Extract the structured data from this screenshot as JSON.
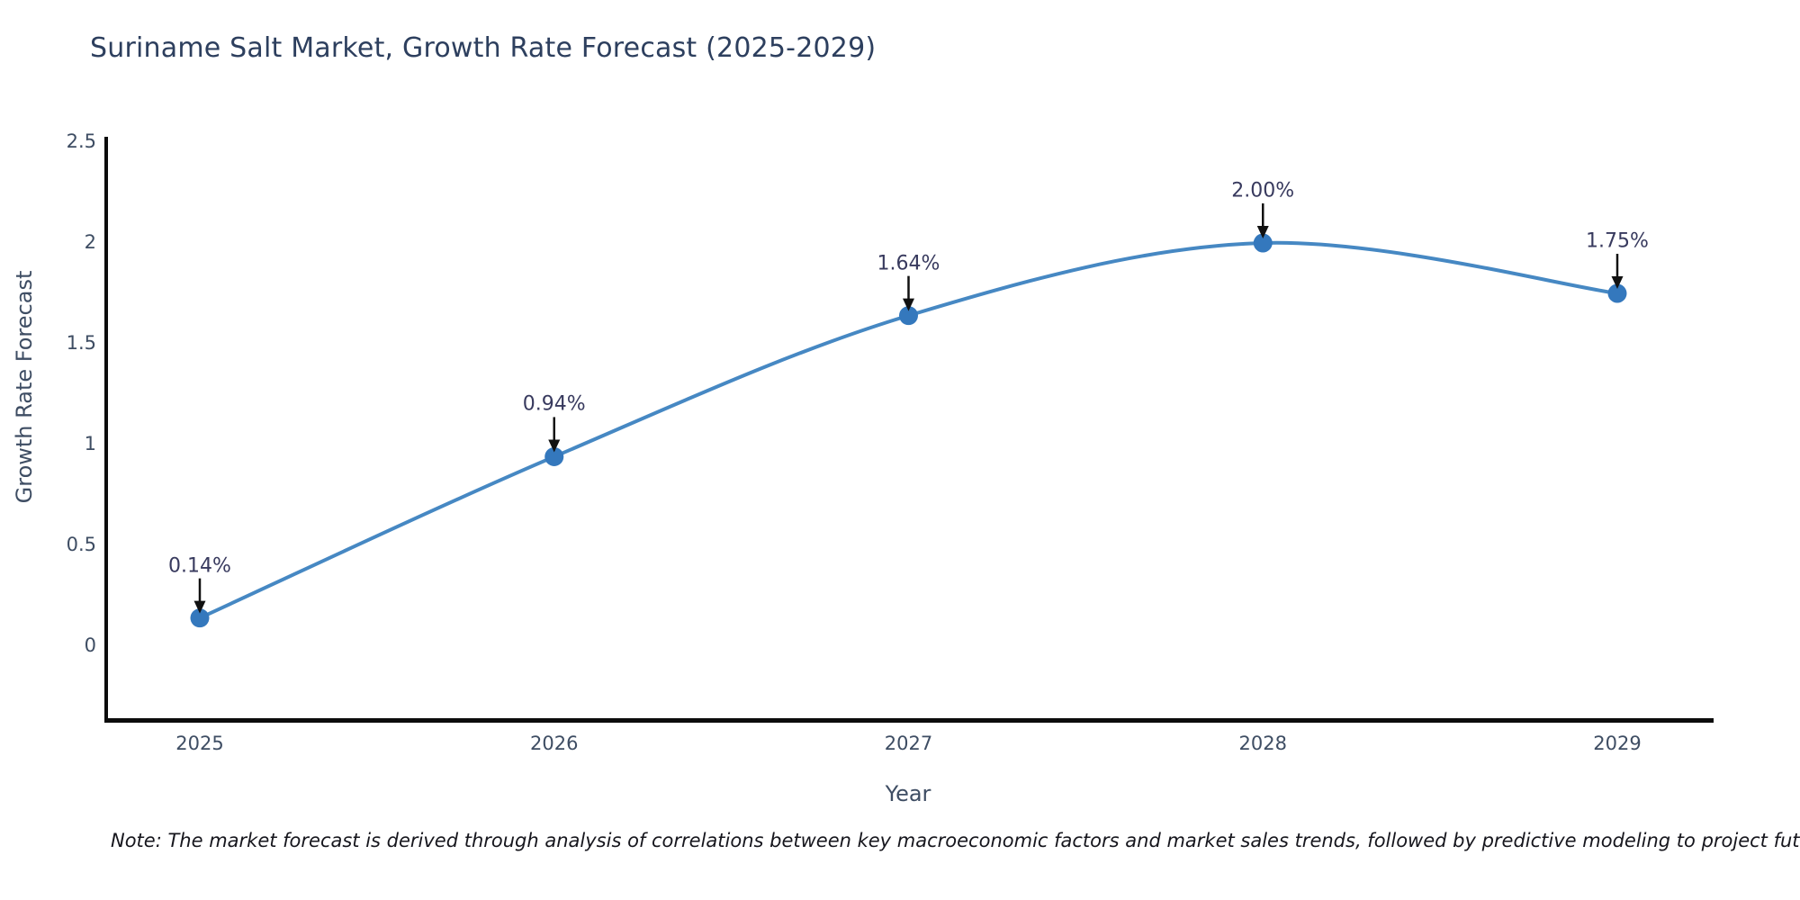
{
  "title": "Suriname Salt Market, Growth Rate Forecast (2025-2029)",
  "note": "Note: The market forecast is derived through analysis of correlations between key macroeconomic factors and market sales trends, followed by predictive modeling to project future sales",
  "chart_data": {
    "type": "line",
    "title": "Suriname Salt Market, Growth Rate Forecast (2025-2029)",
    "xlabel": "Year",
    "ylabel": "Growth Rate Forecast",
    "x": [
      2025,
      2026,
      2027,
      2028,
      2029
    ],
    "x_tick_labels": [
      "2025",
      "2026",
      "2027",
      "2028",
      "2029"
    ],
    "values": [
      0.14,
      0.94,
      1.64,
      2.0,
      1.75
    ],
    "point_labels": [
      "0.14%",
      "0.94%",
      "1.64%",
      "2.00%",
      "1.75%"
    ],
    "y_ticks": [
      0,
      0.5,
      1,
      1.5,
      2,
      2.5
    ],
    "y_tick_labels": [
      "0",
      "0.5",
      "1",
      "1.5",
      "2",
      "2.5"
    ],
    "ylim": [
      -0.37,
      2.52
    ],
    "grid": false,
    "legend": "none",
    "line_smoothing": "spline",
    "annotations": "black arrows pointing down at each marker",
    "colors": {
      "line": "#4688c3",
      "marker": "#3478bd",
      "arrow": "#111111",
      "spine": "#0c0c0c",
      "title_text": "#2d3f5e",
      "tick_text": "#3e4d63",
      "annotation_text": "#383a5e"
    }
  }
}
